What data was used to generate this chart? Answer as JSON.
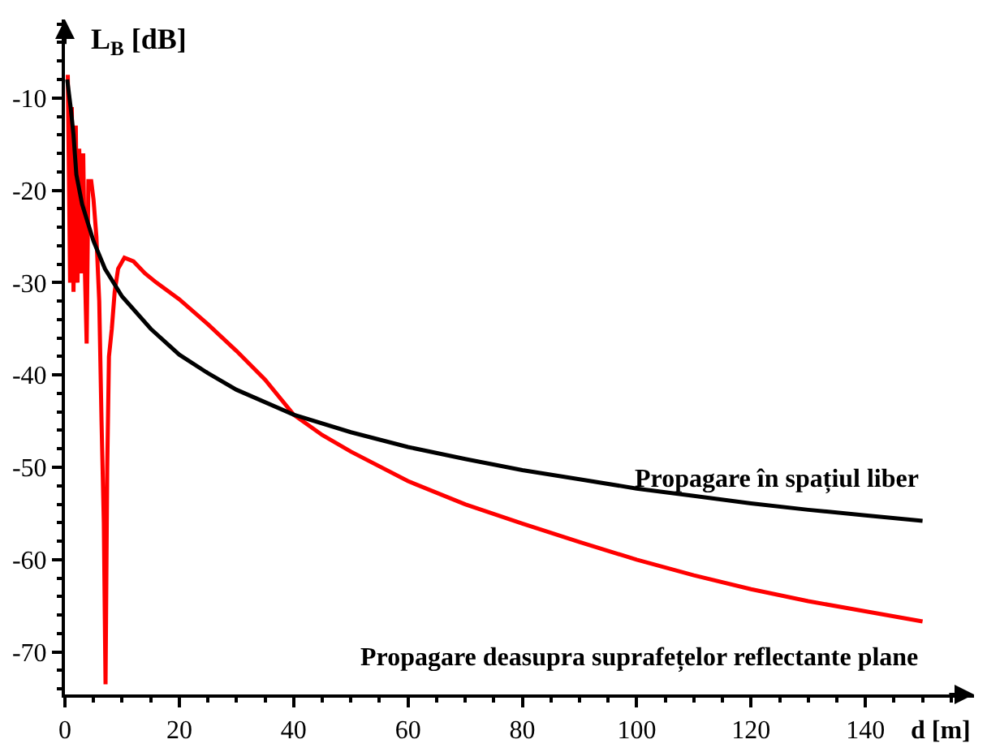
{
  "chart_data": {
    "type": "line",
    "xlabel": "d [m]",
    "ylabel": "L$_{B}$ [dB]",
    "xlim": [
      0,
      159
    ],
    "ylim": [
      -74.6,
      -1.5
    ],
    "xticks": [
      0,
      20,
      40,
      60,
      80,
      100,
      120,
      140
    ],
    "yticks": [
      -70,
      -60,
      -50,
      -40,
      -30,
      -20,
      -10
    ],
    "grid": false,
    "legend": false,
    "line_style": "solid",
    "marker": "none",
    "series": [
      {
        "name": "Propagare în spațiul liber",
        "color": "#000000",
        "x": [
          0.4,
          1,
          1.5,
          2,
          3,
          4,
          5,
          7,
          10,
          15,
          20,
          25,
          30,
          40,
          50,
          60,
          70,
          80,
          90,
          100,
          110,
          120,
          130,
          140,
          150
        ],
        "values": [
          -8,
          -11,
          -14,
          -18.3,
          -21.5,
          -23.5,
          -25.5,
          -28.5,
          -31.5,
          -35,
          -37.8,
          -39.8,
          -41.6,
          -44.3,
          -46.2,
          -47.8,
          -49.1,
          -50.3,
          -51.3,
          -52.3,
          -53.1,
          -53.9,
          -54.6,
          -55.2,
          -55.8
        ]
      },
      {
        "name": "Propagare deasupra suprafețelor reflectante plane",
        "color": "#ff0000",
        "x": [
          0.5,
          0.9,
          1.2,
          1.5,
          1.9,
          2.2,
          2.5,
          2.9,
          3.2,
          3.5,
          3.8,
          4.1,
          4.6,
          5,
          5.5,
          6,
          6.4,
          6.8,
          7.1,
          7.4,
          7.7,
          8.2,
          8.7,
          9.3,
          10.4,
          12,
          14,
          16,
          20,
          25,
          30,
          35,
          40,
          45,
          50,
          60,
          70,
          80,
          90,
          100,
          110,
          120,
          130,
          140,
          150
        ],
        "values": [
          -7.5,
          -30,
          -11,
          -31,
          -13,
          -30,
          -15.5,
          -29,
          -16,
          -29,
          -36.6,
          -19,
          -19,
          -21,
          -25,
          -32,
          -45,
          -56,
          -73.5,
          -50,
          -38,
          -35,
          -31,
          -28.5,
          -27.3,
          -27.7,
          -29,
          -30,
          -31.8,
          -34.5,
          -37.4,
          -40.5,
          -44.3,
          -46.5,
          -48.3,
          -51.5,
          -54,
          -56.1,
          -58.1,
          -60,
          -61.7,
          -63.2,
          -64.5,
          -65.6,
          -66.7
        ]
      }
    ]
  }
}
